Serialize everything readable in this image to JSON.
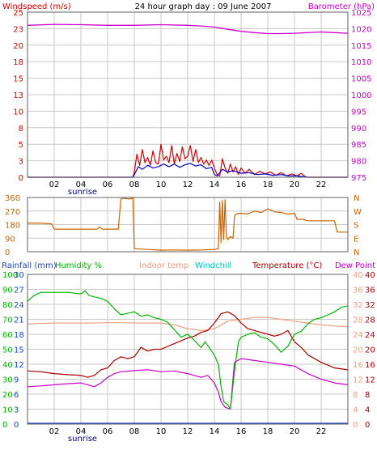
{
  "title": "24 hour graph day : 09 June 2007",
  "colors": {
    "windspeed": "#d40000",
    "windavg": "#0000c8",
    "barometer": "#cc00cc",
    "direction": "#c86400",
    "rainfall": "#1e46c8",
    "humidity": "#00b400",
    "indoor": "#f0a080",
    "windchill": "#00c8c8",
    "temperature": "#b40000",
    "dewpoint": "#c800c8",
    "grid": "#c8c8c8",
    "frame": "#606060",
    "sunrise": "#000080"
  },
  "x_axis": {
    "ticks": [
      "02",
      "04",
      "06",
      "08",
      "10",
      "12",
      "14",
      "16",
      "18",
      "20",
      "22"
    ],
    "sunrise_label": "sunrise",
    "range": [
      0,
      24
    ]
  },
  "chart_data": [
    {
      "type": "line",
      "name": "wind-barometer",
      "left_axis_label": "Windspeed (m/s)",
      "right_axis_label": "Barometer (hPa)",
      "left_ticks": [
        "25",
        "23",
        "20",
        "18",
        "15",
        "13",
        "10",
        "8",
        "5",
        "3",
        "0"
      ],
      "right_ticks": [
        "1025",
        "1020",
        "1015",
        "1010",
        "1005",
        "1000",
        "995",
        "990",
        "985",
        "980",
        "975"
      ],
      "ylim_left": [
        0,
        25
      ],
      "ylim_right": [
        975,
        1025
      ],
      "series": [
        {
          "name": "Barometer",
          "axis": "right",
          "x": [
            0,
            2,
            4,
            6,
            8,
            10,
            12,
            13,
            14,
            15,
            16,
            17,
            18,
            19,
            20,
            21,
            22,
            23,
            24
          ],
          "y": [
            1021.0,
            1021.3,
            1021.2,
            1021.0,
            1021.0,
            1021.2,
            1021.0,
            1020.8,
            1020.5,
            1019.8,
            1019.2,
            1018.8,
            1018.5,
            1018.5,
            1018.6,
            1018.8,
            1019.0,
            1018.8,
            1018.6
          ]
        },
        {
          "name": "Wind gust",
          "axis": "left",
          "x": [
            0,
            7.9,
            8.0,
            8.2,
            8.4,
            8.6,
            8.8,
            9.0,
            9.2,
            9.4,
            9.6,
            9.8,
            10.0,
            10.2,
            10.4,
            10.6,
            10.8,
            11.0,
            11.2,
            11.4,
            11.6,
            11.8,
            12.0,
            12.2,
            12.4,
            12.6,
            12.8,
            13.0,
            13.2,
            13.4,
            13.6,
            13.8,
            14.0,
            14.2,
            14.4,
            14.6,
            14.8,
            15.0,
            15.2,
            15.4,
            15.6,
            15.8,
            16.0,
            16.3,
            16.6,
            17.0,
            17.4,
            17.8,
            18.2,
            18.6,
            19.0,
            19.4,
            19.8,
            20.2,
            20.5,
            20.8,
            21.0,
            24
          ],
          "y": [
            0,
            0,
            0.8,
            3.5,
            1.8,
            4.2,
            2.2,
            3.0,
            1.8,
            4.0,
            2.2,
            2.0,
            5.0,
            2.6,
            3.2,
            2.2,
            4.8,
            2.0,
            3.6,
            2.4,
            4.6,
            2.8,
            3.2,
            4.8,
            2.4,
            4.2,
            2.2,
            3.0,
            2.0,
            2.6,
            1.8,
            2.6,
            1.4,
            0.4,
            0.2,
            2.8,
            1.4,
            0.6,
            2.0,
            0.8,
            1.6,
            0.4,
            1.4,
            0.6,
            1.2,
            0.4,
            0.9,
            0.5,
            0.8,
            0.3,
            0.7,
            0.2,
            0.5,
            0.2,
            0.6,
            0.1,
            0,
            0
          ]
        },
        {
          "name": "Wind average",
          "axis": "left",
          "x": [
            0,
            7.9,
            8.0,
            8.3,
            8.6,
            9.0,
            9.4,
            9.8,
            10.2,
            10.6,
            11.0,
            11.4,
            11.8,
            12.2,
            12.6,
            13.0,
            13.4,
            13.8,
            14.0,
            14.2,
            14.6,
            15.0,
            15.4,
            16.0,
            16.6,
            17.2,
            17.8,
            18.4,
            19.0,
            19.6,
            20.2,
            21.0,
            24
          ],
          "y": [
            0,
            0,
            0.4,
            1.6,
            1.2,
            1.8,
            1.4,
            1.6,
            2.0,
            1.6,
            2.0,
            1.5,
            1.9,
            2.1,
            1.7,
            1.9,
            1.3,
            1.5,
            0.4,
            0.2,
            1.2,
            0.8,
            1.0,
            0.6,
            0.7,
            0.4,
            0.5,
            0.3,
            0.4,
            0.2,
            0.2,
            0,
            0
          ]
        }
      ]
    },
    {
      "type": "line",
      "name": "wind-direction",
      "left_ticks": [
        "360",
        "270",
        "180",
        "90",
        "0"
      ],
      "right_ticks": [
        "N",
        "W",
        "S",
        "E",
        "N"
      ],
      "ylim": [
        0,
        360
      ],
      "series": [
        {
          "name": "Wind direction",
          "x": [
            0,
            1.0,
            1.8,
            2.0,
            5.0,
            5.2,
            5.4,
            5.6,
            5.8,
            6.0,
            6.8,
            7.0,
            7.2,
            7.6,
            7.9,
            8.0,
            9.0,
            10.0,
            11.0,
            12.0,
            13.0,
            14.0,
            14.3,
            14.4,
            14.5,
            14.6,
            14.7,
            14.8,
            14.9,
            15.0,
            15.2,
            15.4,
            15.5,
            15.6,
            16.0,
            16.5,
            17.0,
            17.5,
            18.0,
            18.5,
            19.0,
            19.5,
            20.0,
            20.2,
            20.6,
            21.0,
            22.0,
            23.0,
            23.2,
            24.0
          ],
          "y": [
            190,
            190,
            185,
            150,
            150,
            150,
            165,
            150,
            150,
            150,
            150,
            350,
            355,
            350,
            355,
            20,
            15,
            10,
            12,
            10,
            12,
            15,
            20,
            330,
            60,
            340,
            80,
            345,
            100,
            80,
            100,
            90,
            230,
            250,
            255,
            250,
            270,
            260,
            285,
            265,
            260,
            250,
            255,
            215,
            215,
            205,
            205,
            205,
            130,
            130
          ]
        }
      ]
    },
    {
      "type": "line",
      "name": "temperature-humidity",
      "axis_labels": {
        "rainfall": "Rainfall (mm)",
        "humidity": "Humidity %",
        "indoor": "Indoor temp",
        "windchill": "Windchill",
        "temperature": "Temperature (°C)",
        "dewpoint": "Dew Point"
      },
      "ticks_humidity": [
        "100",
        "90",
        "80",
        "70",
        "60",
        "50",
        "40",
        "30",
        "20",
        "10",
        "0"
      ],
      "ticks_rainfall": [
        "30",
        "27",
        "24",
        "21",
        "18",
        "15",
        "12",
        "9",
        "6",
        "3",
        "0"
      ],
      "ticks_indoor": [
        "40",
        "36",
        "32",
        "28",
        "24",
        "20",
        "16",
        "12",
        "8",
        "4",
        "0"
      ],
      "ticks_temperature": [
        "40",
        "36",
        "32",
        "28",
        "24",
        "20",
        "16",
        "12",
        "8",
        "4",
        "0"
      ],
      "ylim_humidity": [
        0,
        100
      ],
      "ylim_temperature": [
        0,
        40
      ],
      "series": [
        {
          "name": "Humidity",
          "axis": "humidity",
          "x": [
            0,
            0.5,
            1,
            2,
            3,
            4,
            4.3,
            4.6,
            5,
            5.5,
            6,
            6.5,
            7,
            7.5,
            8,
            8.5,
            9,
            9.5,
            10,
            10.5,
            11,
            11.5,
            12,
            12.5,
            13,
            13.3,
            13.7,
            14,
            14.3,
            14.5,
            14.7,
            15,
            15.2,
            15.5,
            15.8,
            16,
            16.5,
            17,
            17.5,
            18,
            18.5,
            19,
            19.5,
            20,
            20.5,
            21,
            21.5,
            22,
            22.5,
            23,
            23.5,
            24
          ],
          "y": [
            82,
            86,
            88,
            88,
            88,
            87,
            89,
            86,
            85,
            84,
            82,
            77,
            73,
            74,
            75,
            72,
            73,
            71,
            70,
            68,
            63,
            58,
            60,
            56,
            51,
            55,
            50,
            46,
            40,
            25,
            15,
            13,
            10,
            35,
            55,
            58,
            60,
            61,
            58,
            57,
            53,
            48,
            52,
            60,
            62,
            67,
            70,
            71,
            73,
            75,
            78,
            79
          ]
        },
        {
          "name": "Indoor temp",
          "axis": "temperature",
          "x": [
            0,
            1,
            2,
            3,
            4,
            5,
            6,
            7,
            8,
            9,
            10,
            11,
            12,
            13,
            14,
            15,
            16,
            17,
            18,
            19,
            20,
            21,
            22,
            23,
            24
          ],
          "y": [
            26.8,
            26.9,
            27.0,
            27.0,
            27.0,
            27.0,
            27.1,
            27.1,
            27.0,
            27.0,
            27.0,
            26.5,
            25.5,
            25.0,
            25.5,
            27.5,
            28.0,
            28.5,
            28.5,
            28.0,
            27.5,
            27.0,
            26.5,
            26.2,
            26.0
          ]
        },
        {
          "name": "Temperature",
          "axis": "temperature",
          "x": [
            0,
            1,
            2,
            3,
            4,
            4.5,
            5,
            5.5,
            6,
            6.5,
            7,
            7.5,
            8,
            8.5,
            9,
            9.5,
            10,
            11,
            12,
            12.5,
            13,
            13.5,
            14,
            14.5,
            15,
            15.5,
            16,
            16.5,
            17,
            17.5,
            18,
            18.5,
            19,
            19.5,
            20,
            20.5,
            21,
            22,
            23,
            24
          ],
          "y": [
            14.2,
            14.0,
            13.5,
            13.2,
            13.0,
            12.5,
            13.0,
            14.5,
            15.0,
            17.0,
            18.0,
            17.5,
            18.0,
            20.5,
            19.5,
            20.0,
            20.0,
            21.5,
            23.0,
            23.5,
            24.5,
            25.0,
            27.0,
            29.5,
            30.0,
            29.0,
            27.0,
            25.5,
            25.0,
            24.5,
            24.0,
            23.5,
            24.0,
            25.0,
            22.0,
            20.5,
            18.5,
            16.5,
            15.0,
            14.5
          ]
        },
        {
          "name": "Windchill",
          "axis": "temperature",
          "x": [
            0,
            1,
            2,
            3,
            4,
            4.5,
            5,
            5.5,
            6,
            6.5,
            7,
            7.5,
            8,
            8.5,
            9,
            9.5,
            10,
            11,
            12,
            12.5,
            13,
            13.5,
            14,
            14.5,
            15,
            15.5,
            16,
            16.5,
            17,
            17.5,
            18,
            18.5,
            19,
            19.5,
            20,
            20.5,
            21,
            22,
            23,
            24
          ],
          "y": [
            14.2,
            14.0,
            13.5,
            13.2,
            13.0,
            12.5,
            13.0,
            14.5,
            15.0,
            17.0,
            18.0,
            17.5,
            18.0,
            20.5,
            19.5,
            20.0,
            20.0,
            21.5,
            23.0,
            23.5,
            24.5,
            25.0,
            27.0,
            29.5,
            30.0,
            29.0,
            27.0,
            25.5,
            25.0,
            24.5,
            24.0,
            23.5,
            24.0,
            25.0,
            22.0,
            20.5,
            18.5,
            16.5,
            15.0,
            14.5
          ]
        },
        {
          "name": "Dew Point",
          "axis": "temperature",
          "x": [
            0,
            1,
            2,
            3,
            4,
            4.5,
            5,
            5.5,
            6,
            6.5,
            7,
            8,
            9,
            10,
            11,
            12,
            12.5,
            13,
            13.5,
            14,
            14.3,
            14.5,
            14.8,
            15.2,
            15.5,
            16,
            17,
            18,
            19,
            20,
            21,
            22,
            23,
            24
          ],
          "y": [
            10.0,
            10.2,
            10.5,
            10.8,
            11.0,
            10.5,
            10.0,
            11.0,
            12.5,
            13.5,
            14.0,
            14.3,
            14.5,
            14.0,
            14.2,
            13.5,
            13.0,
            12.5,
            13.0,
            11.0,
            8.5,
            6.0,
            4.5,
            4.0,
            16.5,
            17.5,
            17.0,
            16.5,
            16.0,
            15.5,
            13.5,
            12.0,
            11.0,
            10.5
          ]
        },
        {
          "name": "Rainfall",
          "axis": "rainfall",
          "x": [
            0,
            24
          ],
          "y": [
            0,
            0
          ]
        }
      ]
    }
  ]
}
